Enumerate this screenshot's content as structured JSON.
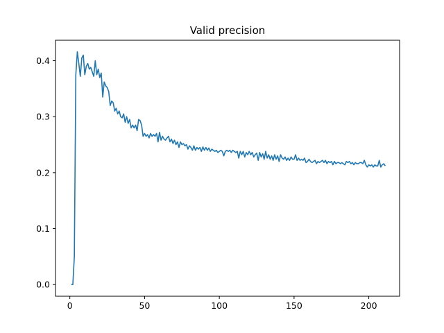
{
  "chart_data": {
    "type": "line",
    "title": "Valid precision",
    "xlabel": "",
    "ylabel": "",
    "xlim": [
      -9.6,
      220.6
    ],
    "ylim": [
      -0.0208,
      0.4366
    ],
    "x_ticks": [
      0,
      50,
      100,
      150,
      200
    ],
    "x_tick_labels": [
      "0",
      "50",
      "100",
      "150",
      "200"
    ],
    "y_ticks": [
      0.0,
      0.1,
      0.2,
      0.3,
      0.4
    ],
    "y_tick_labels": [
      "0.0",
      "0.1",
      "0.2",
      "0.3",
      "0.4"
    ],
    "grid": false,
    "legend": "none",
    "series": [
      {
        "color": "#1f77b4",
        "x": [
          1,
          2,
          3,
          4,
          5,
          6,
          7,
          8,
          9,
          10,
          11,
          12,
          13,
          14,
          15,
          16,
          17,
          18,
          19,
          20,
          21,
          22,
          23,
          24,
          25,
          26,
          27,
          28,
          29,
          30,
          31,
          32,
          33,
          34,
          35,
          36,
          37,
          38,
          39,
          40,
          41,
          42,
          43,
          44,
          45,
          46,
          47,
          48,
          49,
          50,
          51,
          52,
          53,
          54,
          55,
          56,
          57,
          58,
          59,
          60,
          61,
          62,
          63,
          64,
          65,
          66,
          67,
          68,
          69,
          70,
          71,
          72,
          73,
          74,
          75,
          76,
          77,
          78,
          79,
          80,
          81,
          82,
          83,
          84,
          85,
          86,
          87,
          88,
          89,
          90,
          91,
          92,
          93,
          94,
          95,
          96,
          97,
          98,
          99,
          100,
          101,
          102,
          103,
          104,
          105,
          106,
          107,
          108,
          109,
          110,
          111,
          112,
          113,
          114,
          115,
          116,
          117,
          118,
          119,
          120,
          121,
          122,
          123,
          124,
          125,
          126,
          127,
          128,
          129,
          130,
          131,
          132,
          133,
          134,
          135,
          136,
          137,
          138,
          139,
          140,
          141,
          142,
          143,
          144,
          145,
          146,
          147,
          148,
          149,
          150,
          151,
          152,
          153,
          154,
          155,
          156,
          157,
          158,
          159,
          160,
          161,
          162,
          163,
          164,
          165,
          166,
          167,
          168,
          169,
          170,
          171,
          172,
          173,
          174,
          175,
          176,
          177,
          178,
          179,
          180,
          181,
          182,
          183,
          184,
          185,
          186,
          187,
          188,
          189,
          190,
          191,
          192,
          193,
          194,
          195,
          196,
          197,
          198,
          199,
          200,
          201,
          202,
          203,
          204,
          205,
          206,
          207,
          208,
          209,
          210,
          211
        ],
        "values": [
          0.0,
          0.0,
          0.05,
          0.375,
          0.416,
          0.395,
          0.372,
          0.405,
          0.41,
          0.375,
          0.39,
          0.395,
          0.385,
          0.388,
          0.38,
          0.372,
          0.4,
          0.375,
          0.385,
          0.37,
          0.378,
          0.335,
          0.362,
          0.355,
          0.352,
          0.345,
          0.32,
          0.328,
          0.325,
          0.31,
          0.315,
          0.305,
          0.31,
          0.3,
          0.298,
          0.305,
          0.29,
          0.3,
          0.288,
          0.295,
          0.28,
          0.285,
          0.28,
          0.285,
          0.275,
          0.295,
          0.293,
          0.285,
          0.265,
          0.27,
          0.265,
          0.268,
          0.262,
          0.27,
          0.265,
          0.268,
          0.265,
          0.27,
          0.255,
          0.272,
          0.258,
          0.265,
          0.26,
          0.258,
          0.262,
          0.265,
          0.255,
          0.26,
          0.252,
          0.258,
          0.25,
          0.255,
          0.245,
          0.255,
          0.25,
          0.252,
          0.248,
          0.25,
          0.242,
          0.248,
          0.245,
          0.24,
          0.248,
          0.24,
          0.245,
          0.242,
          0.245,
          0.238,
          0.246,
          0.24,
          0.245,
          0.24,
          0.244,
          0.238,
          0.242,
          0.24,
          0.238,
          0.24,
          0.236,
          0.238,
          0.24,
          0.238,
          0.23,
          0.238,
          0.24,
          0.238,
          0.24,
          0.236,
          0.24,
          0.238,
          0.236,
          0.238,
          0.226,
          0.238,
          0.232,
          0.238,
          0.228,
          0.236,
          0.232,
          0.238,
          0.232,
          0.236,
          0.228,
          0.232,
          0.235,
          0.222,
          0.236,
          0.228,
          0.234,
          0.224,
          0.238,
          0.226,
          0.232,
          0.224,
          0.23,
          0.222,
          0.232,
          0.224,
          0.23,
          0.22,
          0.232,
          0.226,
          0.224,
          0.228,
          0.222,
          0.226,
          0.222,
          0.228,
          0.224,
          0.224,
          0.232,
          0.222,
          0.226,
          0.222,
          0.224,
          0.222,
          0.226,
          0.218,
          0.22,
          0.224,
          0.22,
          0.218,
          0.22,
          0.222,
          0.216,
          0.22,
          0.218,
          0.22,
          0.222,
          0.218,
          0.222,
          0.216,
          0.22,
          0.218,
          0.22,
          0.214,
          0.22,
          0.216,
          0.218,
          0.218,
          0.216,
          0.218,
          0.216,
          0.214,
          0.22,
          0.218,
          0.22,
          0.216,
          0.218,
          0.214,
          0.218,
          0.216,
          0.216,
          0.218,
          0.218,
          0.216,
          0.222,
          0.214,
          0.21,
          0.214,
          0.212,
          0.214,
          0.21,
          0.214,
          0.212,
          0.212,
          0.222,
          0.21,
          0.214,
          0.216,
          0.212
        ]
      }
    ]
  }
}
